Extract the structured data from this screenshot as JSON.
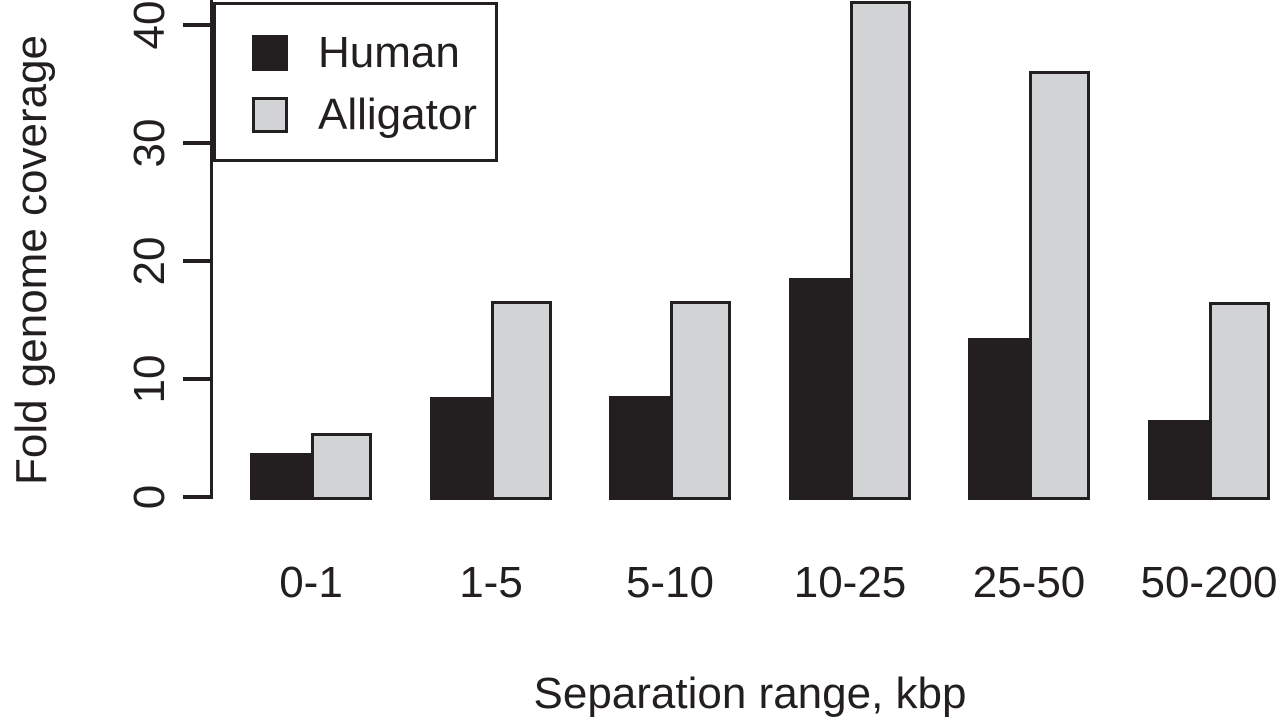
{
  "chart_data": {
    "type": "bar",
    "title": "",
    "categories": [
      "0-1",
      "1-5",
      "5-10",
      "10-25",
      "25-50",
      "50-200"
    ],
    "series": [
      {
        "name": "Human",
        "color": "#231f20",
        "values": [
          3.7,
          8.5,
          8.6,
          18.6,
          13.5,
          6.5
        ]
      },
      {
        "name": "Alligator",
        "color": "#d1d3d4",
        "values": [
          5.4,
          16.6,
          16.6,
          42.0,
          36.1,
          16.5
        ]
      }
    ],
    "xlabel": "Separation range, kbp",
    "ylabel": "Fold genome coverage",
    "yticks": [
      0,
      10,
      20,
      30,
      40
    ],
    "ylim": [
      0,
      42.3
    ],
    "grid": false,
    "legend_position": "top-left",
    "bar_border_color": "#231f20",
    "ink_color": "#231f20"
  }
}
